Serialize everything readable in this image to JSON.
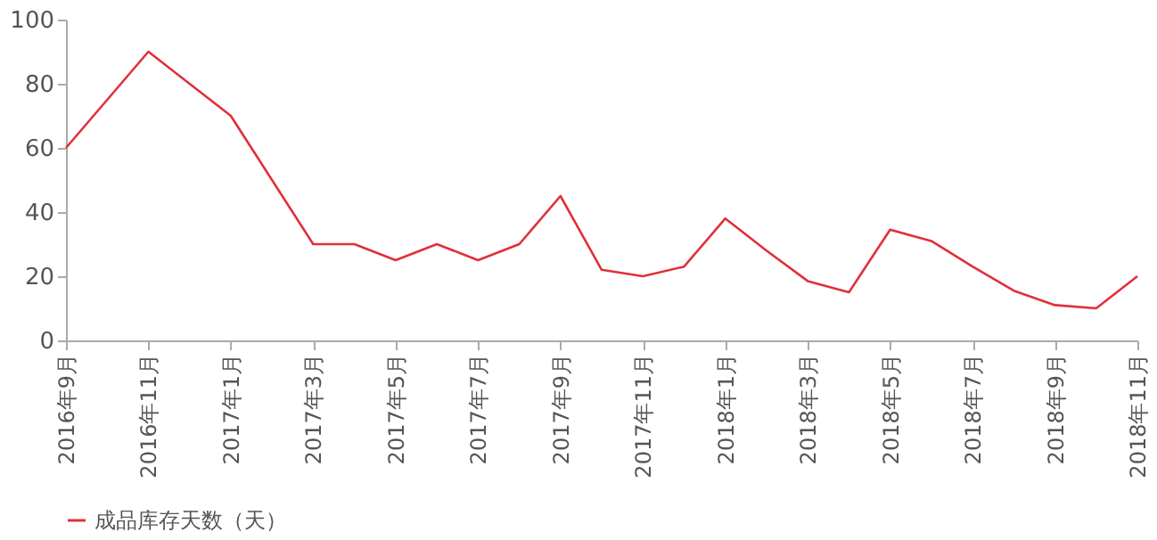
{
  "chart_data": {
    "type": "line",
    "categories": [
      "2016年9月",
      null,
      "2016年11月",
      null,
      "2017年1月",
      null,
      "2017年3月",
      null,
      "2017年5月",
      null,
      "2017年7月",
      null,
      "2017年9月",
      null,
      "2017年11月",
      null,
      "2018年1月",
      null,
      "2018年3月",
      null,
      "2018年5月",
      null,
      "2018年7月",
      null,
      "2018年9月",
      null,
      "2018年11月"
    ],
    "series": [
      {
        "name": "成品库存天数（天）",
        "color": "#e0303a",
        "values": [
          60,
          75,
          90,
          80,
          70,
          50,
          30,
          30,
          25,
          30,
          25,
          30,
          45,
          22,
          20,
          23,
          38,
          28,
          18.5,
          15,
          34.5,
          31,
          23,
          15.5,
          11,
          10,
          20
        ]
      }
    ],
    "ylim": [
      0,
      100
    ],
    "yticks": [
      0,
      20,
      40,
      60,
      80,
      100
    ],
    "grid": false,
    "legend": "bottom",
    "marker": "none",
    "line_style": "solid"
  }
}
